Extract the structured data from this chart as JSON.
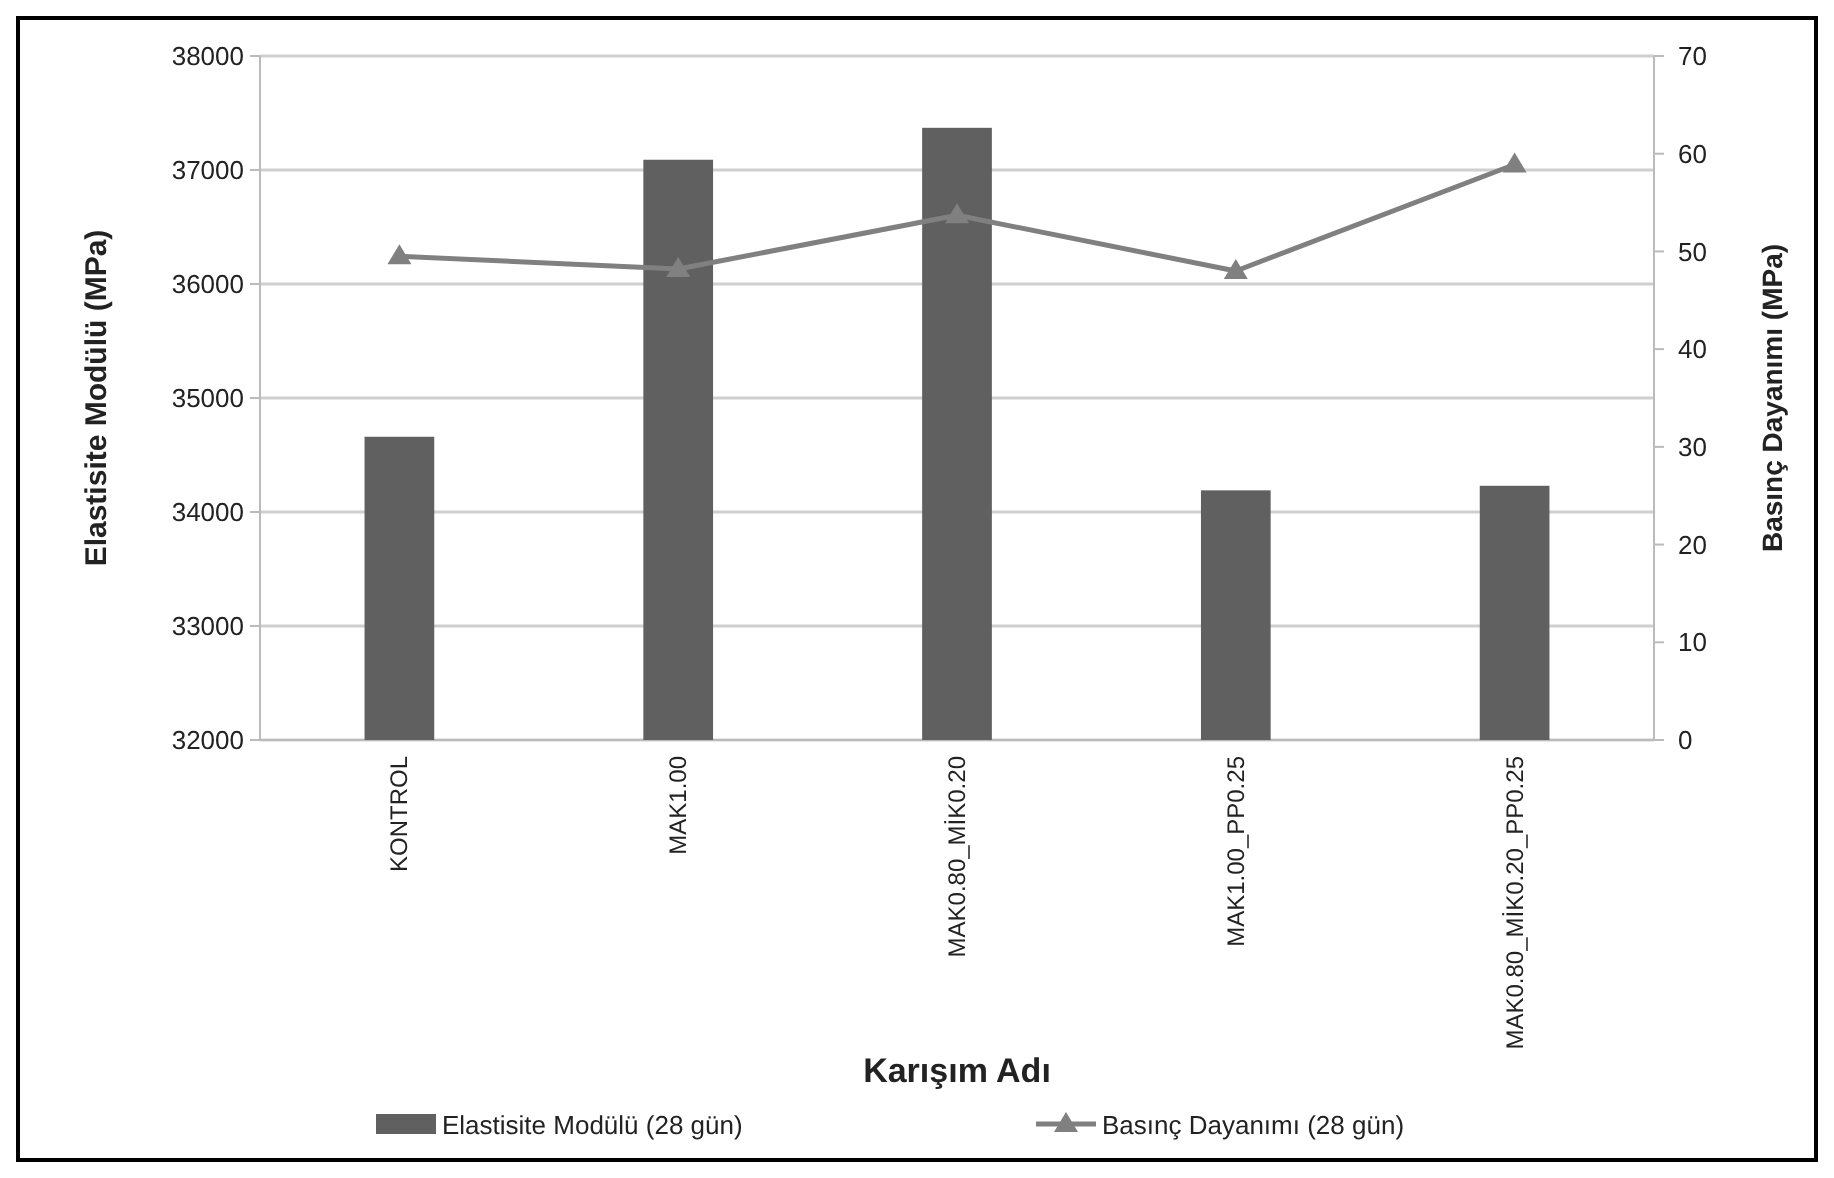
{
  "chart_data": {
    "type": "bar",
    "xlabel": "Karışım Adı",
    "ylabel": "Elastisite Modülü (MPa)",
    "y2label": "Basınç Dayanımı (MPa)",
    "categories": [
      "KONTROL",
      "MAK1.00",
      "MAK0.80_MİK0.20",
      "MAK1.00_PP0.25",
      "MAK0.80_MİK0.20_PP0.25"
    ],
    "series": [
      {
        "name": "Elastisite Modülü (28 gün)",
        "color": "#606060",
        "values": [
          34660,
          37090,
          37370,
          34190,
          34230
        ]
      },
      {
        "name": "Basınç Dayanımı (28 gün)",
        "type": "line",
        "axis": "y2",
        "color": "#808080",
        "marker": "triangle",
        "values": [
          49.5,
          48.2,
          53.7,
          48.0,
          58.9
        ]
      }
    ],
    "ylim": [
      32000,
      38000
    ],
    "yticks": [
      32000,
      33000,
      34000,
      35000,
      36000,
      37000,
      38000
    ],
    "y2lim": [
      0,
      70
    ],
    "y2ticks": [
      0,
      10,
      20,
      30,
      40,
      50,
      60,
      70
    ],
    "grid": "y",
    "legend": "bottom"
  }
}
